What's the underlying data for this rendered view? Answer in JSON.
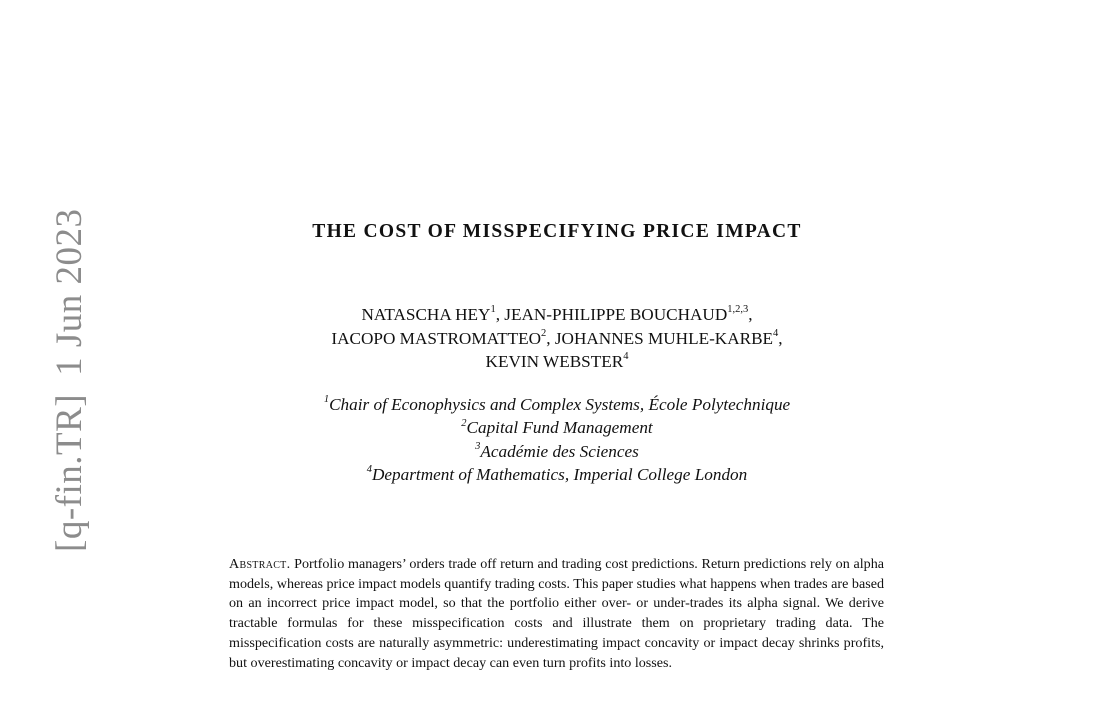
{
  "arxiv_stamp": {
    "category": "[q-fin.TR]",
    "date": "1 Jun 2023"
  },
  "title": "THE COST OF MISSPECIFYING PRICE IMPACT",
  "authors": {
    "line1": {
      "a1_name": "NATASCHA HEY",
      "a1_sup": "1",
      "sep1": ", ",
      "a2_name": "JEAN-PHILIPPE BOUCHAUD",
      "a2_sup": "1,2,3",
      "trail": ","
    },
    "line2": {
      "a3_name": "IACOPO MASTROMATTEO",
      "a3_sup": "2",
      "sep": ", ",
      "a4_name": "JOHANNES MUHLE-KARBE",
      "a4_sup": "4",
      "trail": ","
    },
    "line3": {
      "a5_name": "KEVIN WEBSTER",
      "a5_sup": "4"
    }
  },
  "affiliations": [
    {
      "sup": "1",
      "text": "Chair of Econophysics and Complex Systems, École Polytechnique"
    },
    {
      "sup": "2",
      "text": "Capital Fund Management"
    },
    {
      "sup": "3",
      "text": "Académie des Sciences"
    },
    {
      "sup": "4",
      "text": "Department of Mathematics, Imperial College London"
    }
  ],
  "abstract": {
    "heading": "Abstract.",
    "body": "Portfolio managers’ orders trade off return and trading cost predictions. Return predictions rely on alpha models, whereas price impact models quantify trading costs. This paper studies what happens when trades are based on an incorrect price impact model, so that the portfolio either over- or under-trades its alpha signal. We derive tractable formulas for these misspecification costs and illustrate them on proprietary trading data. The misspecification costs are naturally asymmetric: underestimating impact concavity or impact decay shrinks profits, but overestimating concavity or impact decay can even turn profits into losses."
  }
}
